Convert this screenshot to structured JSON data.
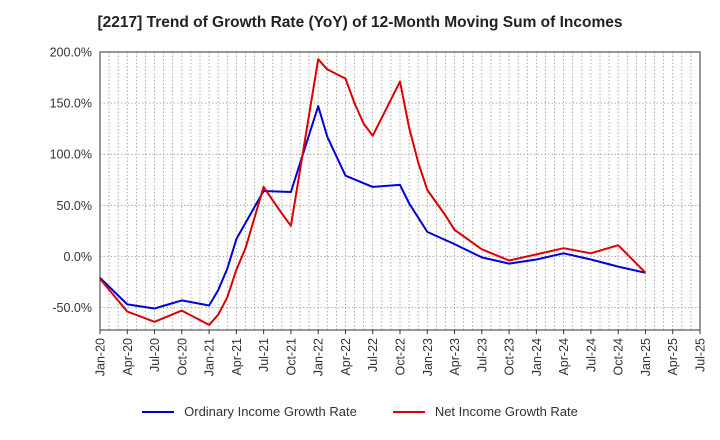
{
  "chart_data": {
    "type": "line",
    "title": "[2217]  Trend of Growth Rate (YoY) of 12-Month Moving Sum of Incomes",
    "xlabel": "",
    "ylabel": "",
    "ylim": [
      -0.72,
      2.0
    ],
    "yticks": [
      2.0,
      1.5,
      1.0,
      0.5,
      0.0,
      -0.5
    ],
    "ytick_labels": [
      "200.0%",
      "150.0%",
      "100.0%",
      "50.0%",
      "0.0%",
      "-50.0%"
    ],
    "xticks": [
      "2020-01",
      "2020-04",
      "2020-07",
      "2020-10",
      "2021-01",
      "2021-04",
      "2021-07",
      "2021-10",
      "2022-01",
      "2022-04",
      "2022-07",
      "2022-10",
      "2023-01",
      "2023-04",
      "2023-07",
      "2023-10",
      "2024-01",
      "2024-04",
      "2024-07",
      "2024-10",
      "2025-01",
      "2025-04",
      "2025-07"
    ],
    "xtick_labels": [
      "Jan-20",
      "Apr-20",
      "Jul-20",
      "Oct-20",
      "Jan-21",
      "Apr-21",
      "Jul-21",
      "Oct-21",
      "Jan-22",
      "Apr-22",
      "Jul-22",
      "Oct-22",
      "Jan-23",
      "Apr-23",
      "Jul-23",
      "Oct-23",
      "Jan-24",
      "Apr-24",
      "Jul-24",
      "Oct-24",
      "Jan-25",
      "Apr-25",
      "Jul-25"
    ],
    "xlim": [
      "2020-01",
      "2025-07"
    ],
    "grid": true,
    "legend_position": "bottom",
    "series": [
      {
        "name": "Ordinary Income Growth Rate",
        "color": "#0000dd",
        "points": [
          [
            "2020-01",
            -0.21
          ],
          [
            "2020-04",
            -0.47
          ],
          [
            "2020-07",
            -0.51
          ],
          [
            "2020-10",
            -0.43
          ],
          [
            "2021-01",
            -0.48
          ],
          [
            "2021-02",
            -0.33
          ],
          [
            "2021-03",
            -0.12
          ],
          [
            "2021-04",
            0.17
          ],
          [
            "2021-07",
            0.64
          ],
          [
            "2021-10",
            0.63
          ],
          [
            "2022-01",
            1.47
          ],
          [
            "2022-02",
            1.17
          ],
          [
            "2022-04",
            0.79
          ],
          [
            "2022-07",
            0.68
          ],
          [
            "2022-10",
            0.7
          ],
          [
            "2022-11",
            0.52
          ],
          [
            "2023-01",
            0.24
          ],
          [
            "2023-04",
            0.12
          ],
          [
            "2023-07",
            -0.01
          ],
          [
            "2023-10",
            -0.07
          ],
          [
            "2024-01",
            -0.03
          ],
          [
            "2024-04",
            0.03
          ],
          [
            "2024-07",
            -0.03
          ],
          [
            "2024-10",
            -0.1
          ],
          [
            "2025-01",
            -0.16
          ]
        ]
      },
      {
        "name": "Net Income Growth Rate",
        "color": "#dd0000",
        "points": [
          [
            "2020-01",
            -0.22
          ],
          [
            "2020-04",
            -0.54
          ],
          [
            "2020-07",
            -0.64
          ],
          [
            "2020-10",
            -0.53
          ],
          [
            "2021-01",
            -0.67
          ],
          [
            "2021-02",
            -0.57
          ],
          [
            "2021-03",
            -0.4
          ],
          [
            "2021-04",
            -0.13
          ],
          [
            "2021-05",
            0.08
          ],
          [
            "2021-07",
            0.68
          ],
          [
            "2021-09",
            0.42
          ],
          [
            "2021-10",
            0.3
          ],
          [
            "2022-01",
            1.93
          ],
          [
            "2022-02",
            1.83
          ],
          [
            "2022-04",
            1.74
          ],
          [
            "2022-05",
            1.5
          ],
          [
            "2022-06",
            1.3
          ],
          [
            "2022-07",
            1.18
          ],
          [
            "2022-10",
            1.71
          ],
          [
            "2022-11",
            1.26
          ],
          [
            "2022-12",
            0.92
          ],
          [
            "2023-01",
            0.65
          ],
          [
            "2023-03",
            0.4
          ],
          [
            "2023-04",
            0.26
          ],
          [
            "2023-07",
            0.07
          ],
          [
            "2023-10",
            -0.04
          ],
          [
            "2024-01",
            0.02
          ],
          [
            "2024-04",
            0.08
          ],
          [
            "2024-07",
            0.03
          ],
          [
            "2024-10",
            0.11
          ],
          [
            "2025-01",
            -0.16
          ]
        ]
      }
    ]
  }
}
